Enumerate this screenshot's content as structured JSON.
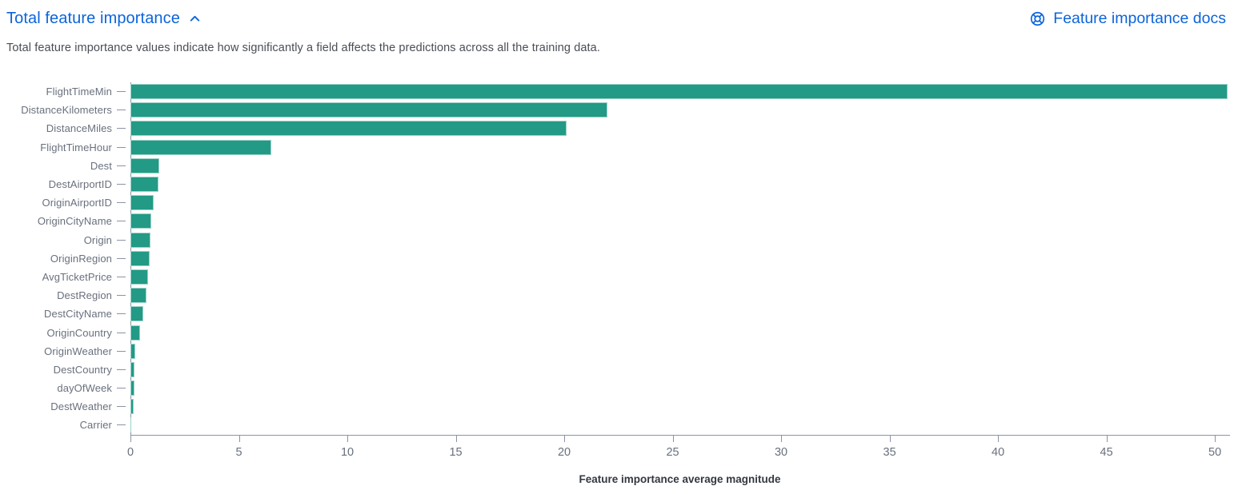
{
  "header": {
    "title": "Total feature importance",
    "collapse_icon": "chevron-up-icon",
    "docs_icon": "lifebuoy-help-icon",
    "docs_link_label": "Feature importance docs"
  },
  "description": "Total feature importance values indicate how significantly a field affects the predictions across all the training data.",
  "colors": {
    "link_blue": "#0B64DD",
    "bar_teal": "#229A85",
    "axis_line": "#8C93A6",
    "tick_text": "#69707D",
    "axis_title_text": "#343741"
  },
  "chart_data": {
    "type": "bar",
    "orientation": "horizontal",
    "title": "",
    "xlabel": "Feature importance average magnitude",
    "ylabel": "",
    "categories": [
      "FlightTimeMin",
      "DistanceKilometers",
      "DistanceMiles",
      "FlightTimeHour",
      "Dest",
      "DestAirportID",
      "OriginAirportID",
      "OriginCityName",
      "Origin",
      "OriginRegion",
      "AvgTicketPrice",
      "DestRegion",
      "DestCityName",
      "OriginCountry",
      "OriginWeather",
      "DestCountry",
      "dayOfWeek",
      "DestWeather",
      "Carrier"
    ],
    "values": [
      50.6,
      22.0,
      20.1,
      6.5,
      1.33,
      1.3,
      1.06,
      0.95,
      0.93,
      0.88,
      0.83,
      0.72,
      0.59,
      0.43,
      0.21,
      0.18,
      0.18,
      0.15,
      0.05
    ],
    "xlim": [
      0,
      50.66
    ],
    "x_ticks": [
      0,
      5,
      10,
      15,
      20,
      25,
      30,
      35,
      40,
      45,
      50
    ],
    "grid": false,
    "legend": false,
    "bar_color": "#229A85"
  }
}
